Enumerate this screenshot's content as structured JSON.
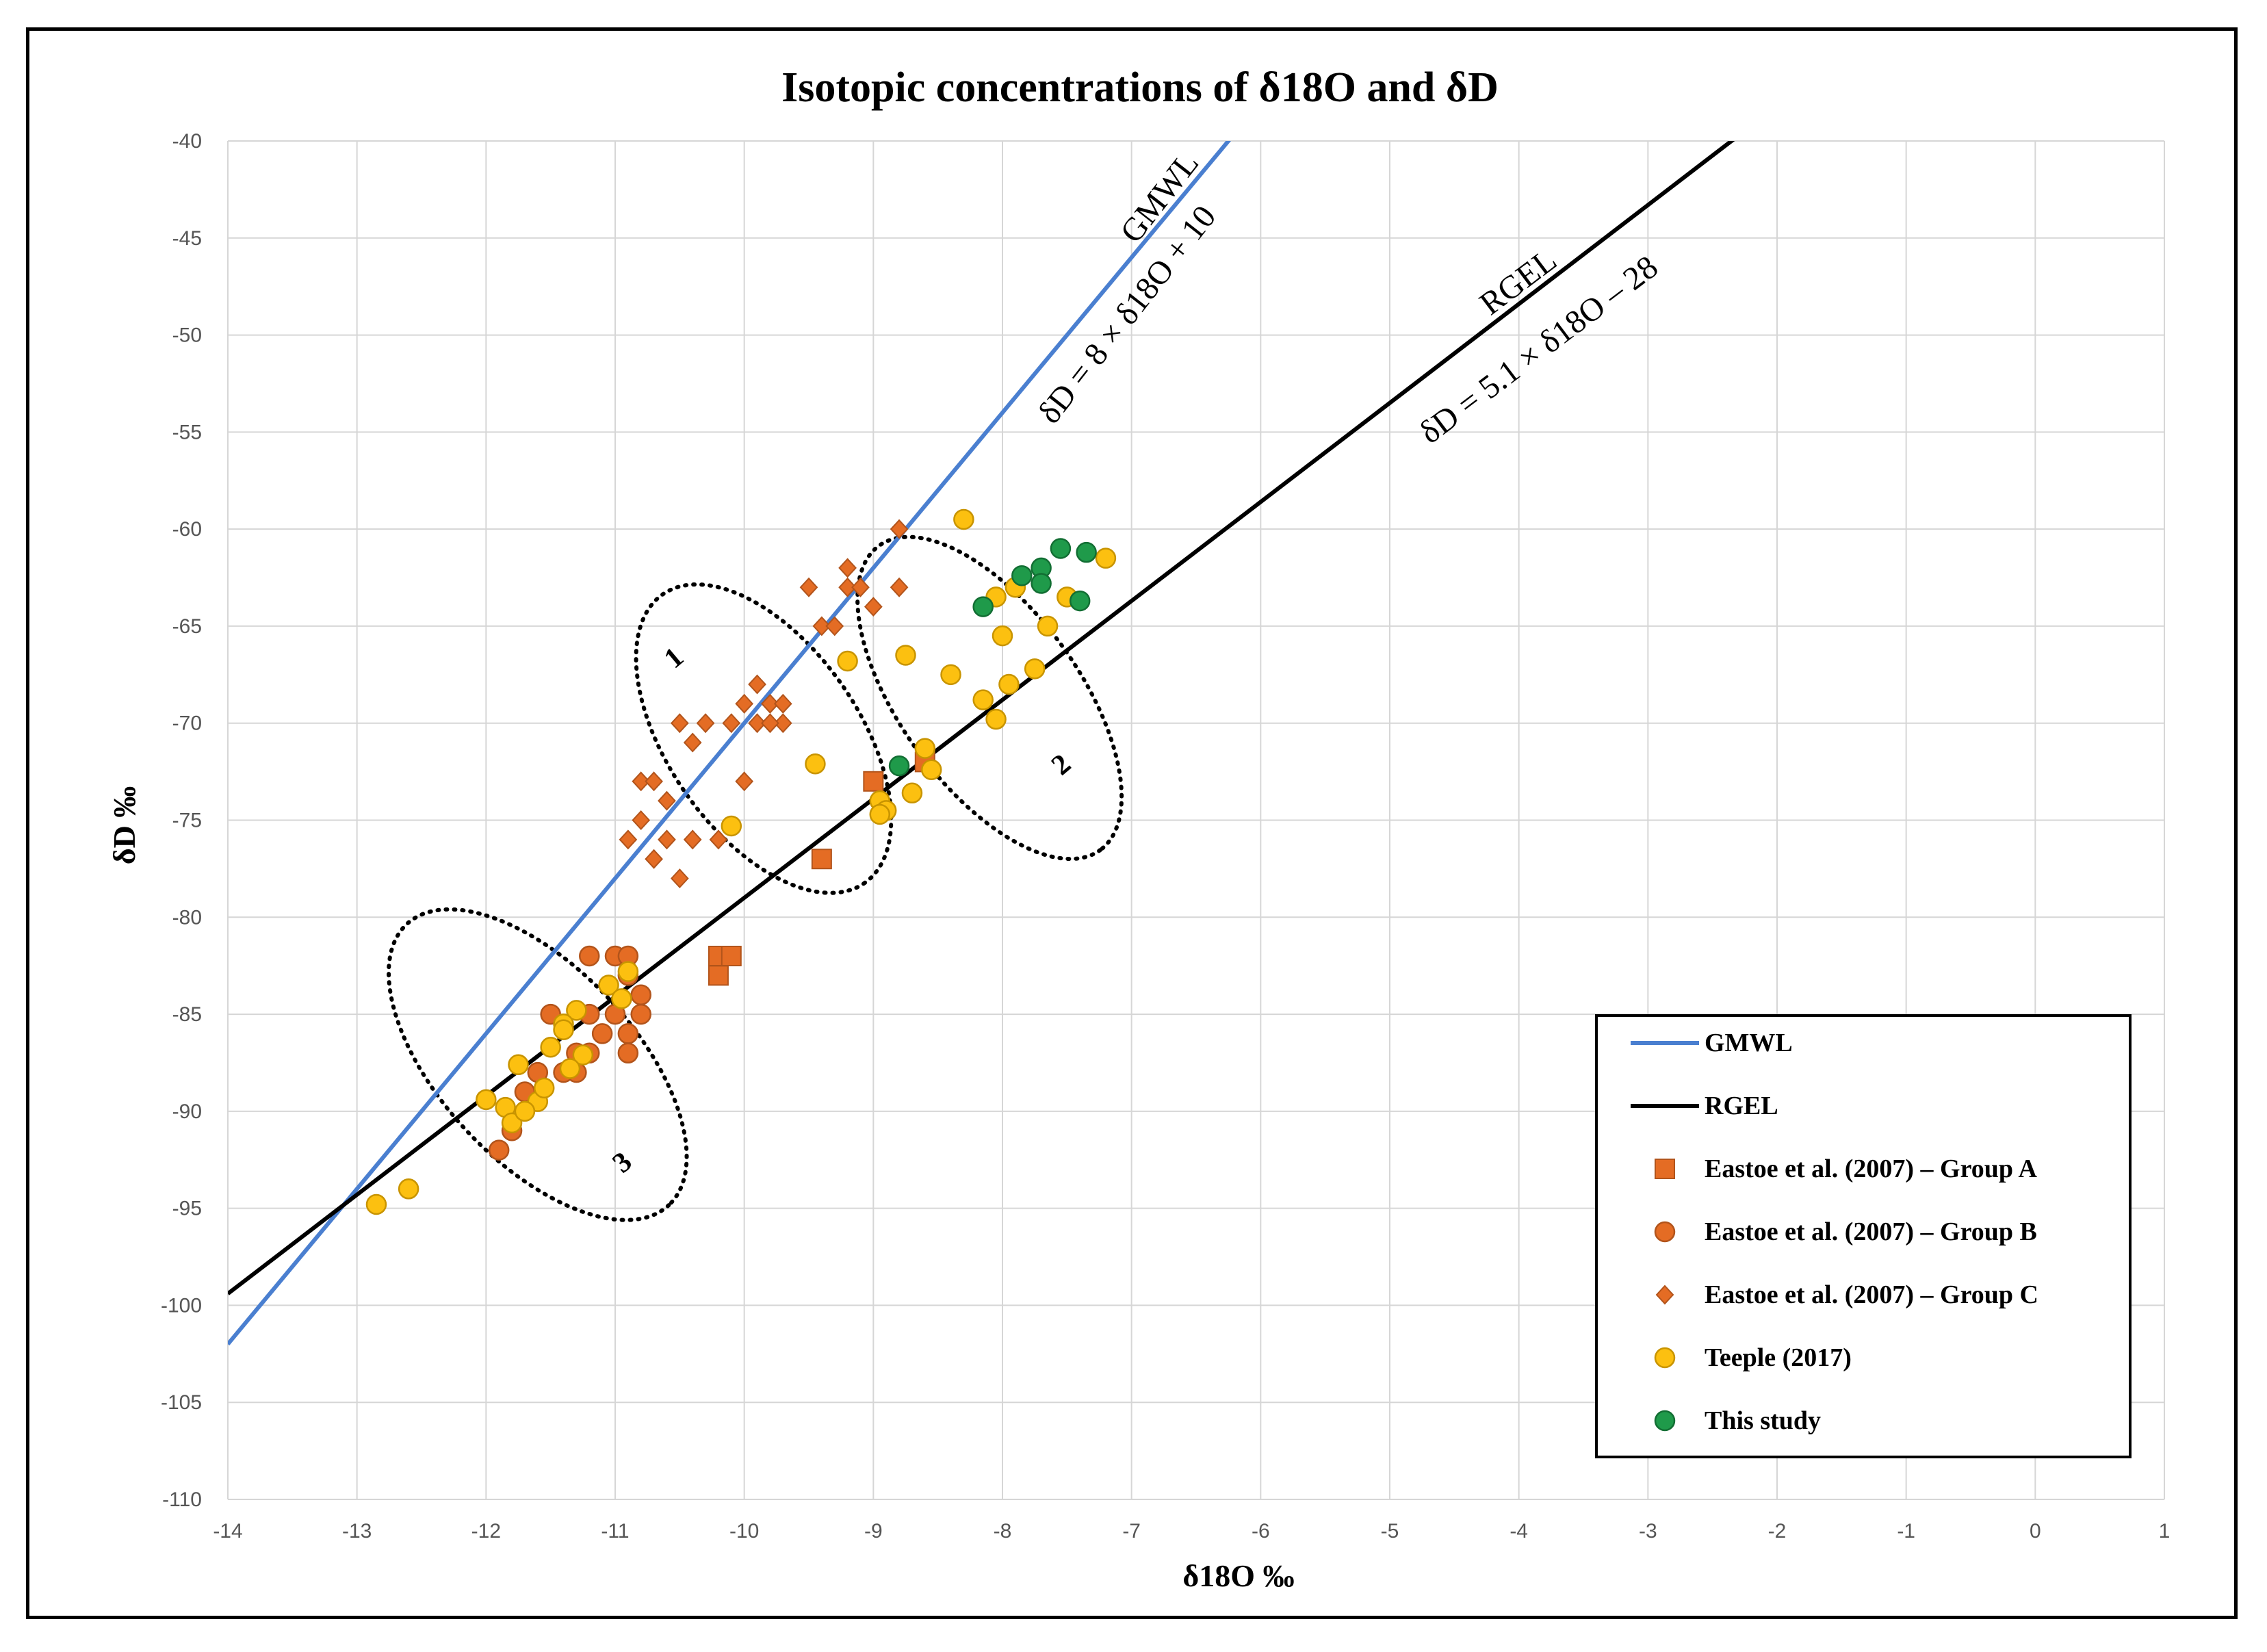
{
  "chart_data": {
    "type": "scatter",
    "title": "Isotopic concentrations of δ18O and δD",
    "xlabel": "δ18O ‰",
    "ylabel": "δD ‰",
    "xlim": [
      -14,
      1
    ],
    "ylim": [
      -110,
      -40
    ],
    "xticks": [
      -14,
      -13,
      -12,
      -11,
      -10,
      -9,
      -8,
      -7,
      -6,
      -5,
      -4,
      -3,
      -2,
      -1,
      0,
      1
    ],
    "yticks": [
      -40,
      -45,
      -50,
      -55,
      -60,
      -65,
      -70,
      -75,
      -80,
      -85,
      -90,
      -95,
      -100,
      -105,
      -110
    ],
    "grid": true,
    "legend_position": "bottom-right",
    "lines": [
      {
        "name": "GMWL",
        "slope": 8,
        "intercept": 10,
        "color": "#4a7fd0",
        "equation": "δD = 8 × δ18O + 10",
        "label": "GMWL"
      },
      {
        "name": "RGEL",
        "slope": 5.1,
        "intercept": -28,
        "color": "#000000",
        "equation": "δD = 5.1 × δ18O – 28",
        "label": "RGEL"
      }
    ],
    "series": [
      {
        "name": "Eastoe et al. (2007) – Group A",
        "marker": "square",
        "color": "#e46c24",
        "edge": "#b2541b",
        "x": [
          -9.0,
          -9.4,
          -8.6,
          -10.2,
          -10.1,
          -10.2
        ],
        "y": [
          -73,
          -77,
          -72,
          -82,
          -82,
          -83
        ]
      },
      {
        "name": "Eastoe et al. (2007) – Group B",
        "marker": "circle",
        "color": "#e46c24",
        "edge": "#b2541b",
        "x": [
          -11.2,
          -11.0,
          -10.9,
          -10.9,
          -10.8,
          -10.8,
          -11.0,
          -11.1,
          -11.2,
          -11.3,
          -11.4,
          -11.5,
          -11.6,
          -11.7,
          -11.8,
          -11.9,
          -10.9,
          -10.9,
          -11.2,
          -11.3
        ],
        "y": [
          -82,
          -82,
          -82,
          -83,
          -84,
          -85,
          -85,
          -86,
          -85,
          -88,
          -88,
          -85,
          -88,
          -89,
          -91,
          -92,
          -86,
          -87,
          -87,
          -87
        ]
      },
      {
        "name": "Eastoe et al. (2007) – Group C",
        "marker": "diamond",
        "color": "#e46c24",
        "edge": "#b2541b",
        "x": [
          -8.8,
          -9.2,
          -9.2,
          -9.1,
          -8.8,
          -9.0,
          -9.5,
          -9.4,
          -9.3,
          -9.9,
          -10.0,
          -9.8,
          -9.7,
          -9.9,
          -10.1,
          -10.3,
          -10.5,
          -10.4,
          -10.8,
          -10.7,
          -10.6,
          -10.8,
          -10.6,
          -10.9,
          -10.7,
          -10.4,
          -10.2,
          -10.5,
          -10.0,
          -9.7,
          -9.8
        ],
        "y": [
          -60,
          -62,
          -63,
          -63,
          -63,
          -64,
          -63,
          -65,
          -65,
          -68,
          -69,
          -69,
          -69,
          -70,
          -70,
          -70,
          -70,
          -71,
          -73,
          -73,
          -74,
          -75,
          -76,
          -76,
          -77,
          -76,
          -76,
          -78,
          -73,
          -70,
          -70
        ]
      },
      {
        "name": "Teeple (2017)",
        "marker": "circle",
        "color": "#fcc010",
        "edge": "#c89400",
        "x": [
          -8.3,
          -7.2,
          -7.5,
          -7.9,
          -8.05,
          -7.65,
          -8.0,
          -8.75,
          -9.2,
          -8.4,
          -7.75,
          -7.95,
          -8.15,
          -8.05,
          -8.6,
          -8.55,
          -8.7,
          -8.95,
          -8.9,
          -8.95,
          -9.45,
          -10.1,
          -10.9,
          -11.05,
          -11.3,
          -11.4,
          -11.5,
          -11.6,
          -11.75,
          -11.85,
          -11.8,
          -11.7,
          -12.0,
          -12.6,
          -12.85,
          -11.25,
          -11.35,
          -11.4,
          -10.95,
          -11.55
        ],
        "y": [
          -59.5,
          -61.5,
          -63.5,
          -63,
          -63.5,
          -65,
          -65.5,
          -66.5,
          -66.8,
          -67.5,
          -67.2,
          -68,
          -68.8,
          -69.8,
          -71.3,
          -72.4,
          -73.6,
          -74.0,
          -74.5,
          -74.7,
          -72.1,
          -75.3,
          -82.8,
          -83.5,
          -84.8,
          -85.5,
          -86.7,
          -89.5,
          -87.6,
          -89.8,
          -90.6,
          -90.0,
          -89.4,
          -94.0,
          -94.8,
          -87.1,
          -87.8,
          -85.8,
          -84.2,
          -88.8
        ]
      },
      {
        "name": "This study",
        "marker": "circle",
        "color": "#1f9a4a",
        "edge": "#126e33",
        "x": [
          -7.55,
          -7.35,
          -7.7,
          -7.85,
          -7.7,
          -7.4,
          -8.15,
          -8.8
        ],
        "y": [
          -61,
          -61.2,
          -62,
          -62.4,
          -62.8,
          -63.7,
          -64,
          -72.2
        ]
      }
    ],
    "annotations": [
      {
        "text": "1",
        "x": -10.5,
        "y": -67
      },
      {
        "text": "2",
        "x": -7.5,
        "y": -72.5
      },
      {
        "text": "3",
        "x": -10.9,
        "y": -93
      }
    ],
    "ellipses": [
      {
        "name": "group-1",
        "cx": -9.85,
        "cy": -70.8,
        "rx_data": 2.2,
        "ry_data": 4.9,
        "rotate": -35
      },
      {
        "name": "group-2",
        "cx": -8.1,
        "cy": -68.7,
        "rx_data": 2.35,
        "ry_data": 4.6,
        "rotate": -36
      },
      {
        "name": "group-3",
        "cx": -11.6,
        "cy": -87.6,
        "rx_data": 2.4,
        "ry_data": 5.0,
        "rotate": -43
      }
    ]
  },
  "legend": {
    "entries": [
      "GMWL",
      "RGEL",
      "Eastoe et al. (2007) – Group A",
      "Eastoe et al. (2007) – Group B",
      "Eastoe et al. (2007) – Group C",
      "Teeple (2017)",
      "This study"
    ]
  }
}
